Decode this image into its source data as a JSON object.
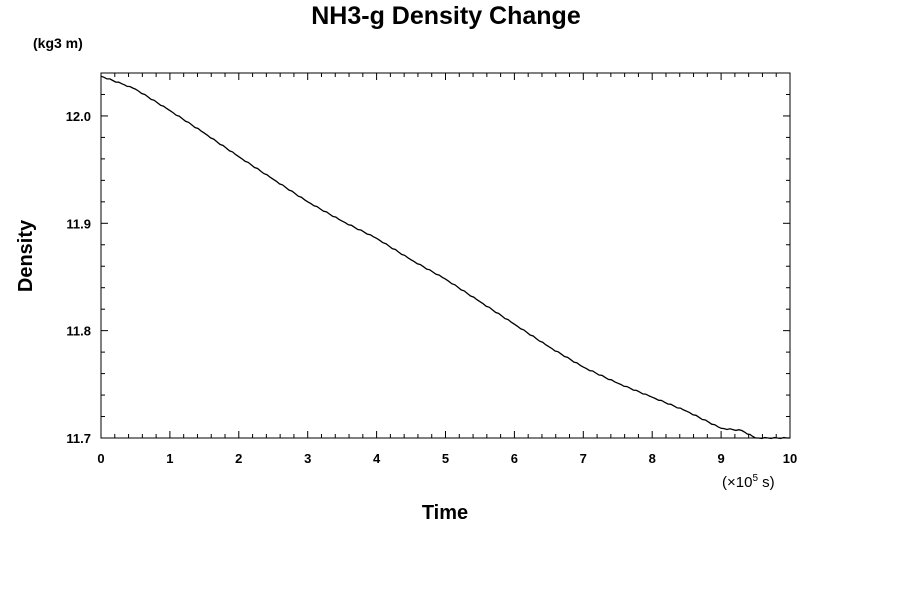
{
  "chart_data": {
    "type": "line",
    "title": "NH3-g Density Change",
    "ylabel": "Density",
    "yunit": "(kg3 m)",
    "xlabel": "Time",
    "x_multiplier": {
      "prefix": "(×10",
      "exponent": "5",
      "suffix": " s)"
    },
    "xlim": [
      0,
      10
    ],
    "ylim": [
      11.7,
      12.04
    ],
    "x_ticks": [
      "0",
      "1",
      "2",
      "3",
      "4",
      "5",
      "6",
      "7",
      "8",
      "9",
      "10"
    ],
    "y_ticks": [
      "12.0",
      "11.9",
      "11.8",
      "11.7"
    ],
    "grid": false,
    "series": [
      {
        "x": [
          0,
          0.3,
          0.5,
          1.0,
          1.5,
          2.0,
          2.5,
          3.0,
          3.5,
          4.0,
          4.5,
          5.0,
          5.5,
          6.0,
          6.5,
          7.0,
          7.5,
          8.0,
          8.5,
          9.0,
          9.3,
          9.5,
          10.0
        ],
        "y": [
          12.037,
          12.03,
          12.025,
          12.005,
          11.984,
          11.962,
          11.941,
          11.92,
          11.902,
          11.886,
          11.866,
          11.848,
          11.827,
          11.806,
          11.785,
          11.766,
          11.751,
          11.738,
          11.725,
          11.709,
          11.707,
          11.7,
          11.7
        ],
        "color": "#000000"
      }
    ]
  }
}
